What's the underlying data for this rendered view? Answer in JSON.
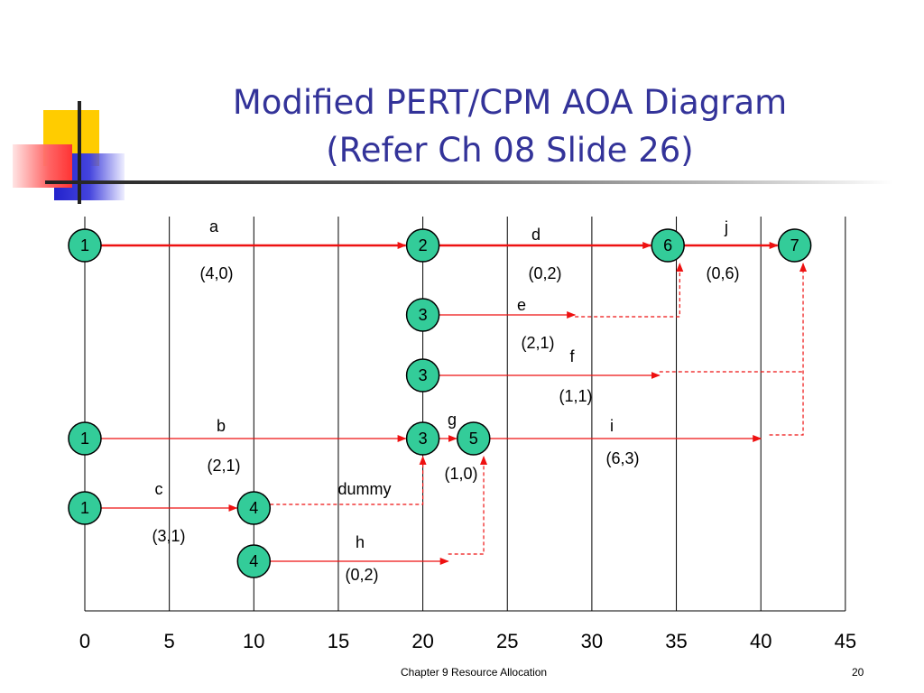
{
  "title": {
    "line1": "Modified PERT/CPM AOA Diagram",
    "line2": "(Refer Ch 08 Slide 26)"
  },
  "footer": {
    "text": "Chapter 9 Resource Allocation",
    "page": "20"
  },
  "colors": {
    "title": "#333399",
    "node_fill": "#33cc99",
    "arrow": "#ee1111",
    "accent_yellow": "#ffcc00",
    "accent_blue": "#3333cc",
    "accent_red": "#ff5555"
  },
  "axis": {
    "ticks": [
      "0",
      "5",
      "10",
      "15",
      "20",
      "25",
      "30",
      "35",
      "40",
      "45"
    ],
    "min": 0,
    "max": 45,
    "step": 5
  },
  "nodes": [
    {
      "id": "n1a",
      "label": "1",
      "t": 0,
      "row": 0
    },
    {
      "id": "n2",
      "label": "2",
      "t": 20,
      "row": 0
    },
    {
      "id": "n6",
      "label": "6",
      "t": 34.5,
      "row": 0
    },
    {
      "id": "n7",
      "label": "7",
      "t": 42,
      "row": 0
    },
    {
      "id": "n3a",
      "label": "3",
      "t": 20,
      "row": 1
    },
    {
      "id": "n3b",
      "label": "3",
      "t": 20,
      "row": 2
    },
    {
      "id": "n1b",
      "label": "1",
      "t": 0,
      "row": 3
    },
    {
      "id": "n3c",
      "label": "3",
      "t": 20,
      "row": 3
    },
    {
      "id": "n5",
      "label": "5",
      "t": 23,
      "row": 3
    },
    {
      "id": "n1c",
      "label": "1",
      "t": 0,
      "row": 4
    },
    {
      "id": "n4a",
      "label": "4",
      "t": 10,
      "row": 4
    },
    {
      "id": "n4b",
      "label": "4",
      "t": 10,
      "row": 5
    }
  ],
  "activities": [
    {
      "name": "a",
      "times": "(4,0)",
      "from": "n1a",
      "to": "n2",
      "critical": true
    },
    {
      "name": "d",
      "times": "(0,2)",
      "from": "n2",
      "to": "n6",
      "critical": true
    },
    {
      "name": "j",
      "times": "(0,6)",
      "from": "n6",
      "to": "n7",
      "critical": true
    },
    {
      "name": "e",
      "times": "(2,1)",
      "from": "n3a",
      "end_t": 29
    },
    {
      "name": "f",
      "times": "(1,1)",
      "from": "n3b",
      "end_t": 34
    },
    {
      "name": "b",
      "times": "(2,1)",
      "from": "n1b",
      "to": "n3c"
    },
    {
      "name": "g",
      "times": "(1,0)",
      "from": "n3c",
      "to": "n5"
    },
    {
      "name": "i",
      "times": "(6,3)",
      "from": "n5",
      "end_t": 40
    },
    {
      "name": "c",
      "times": "(3,1)",
      "from": "n1c",
      "to": "n4a"
    },
    {
      "name": "h",
      "times": "(0,2)",
      "from": "n4b",
      "end_t": 21.5
    },
    {
      "name": "dummy",
      "times": "",
      "from": "n4a",
      "to": "n3c",
      "dashed": true
    }
  ]
}
